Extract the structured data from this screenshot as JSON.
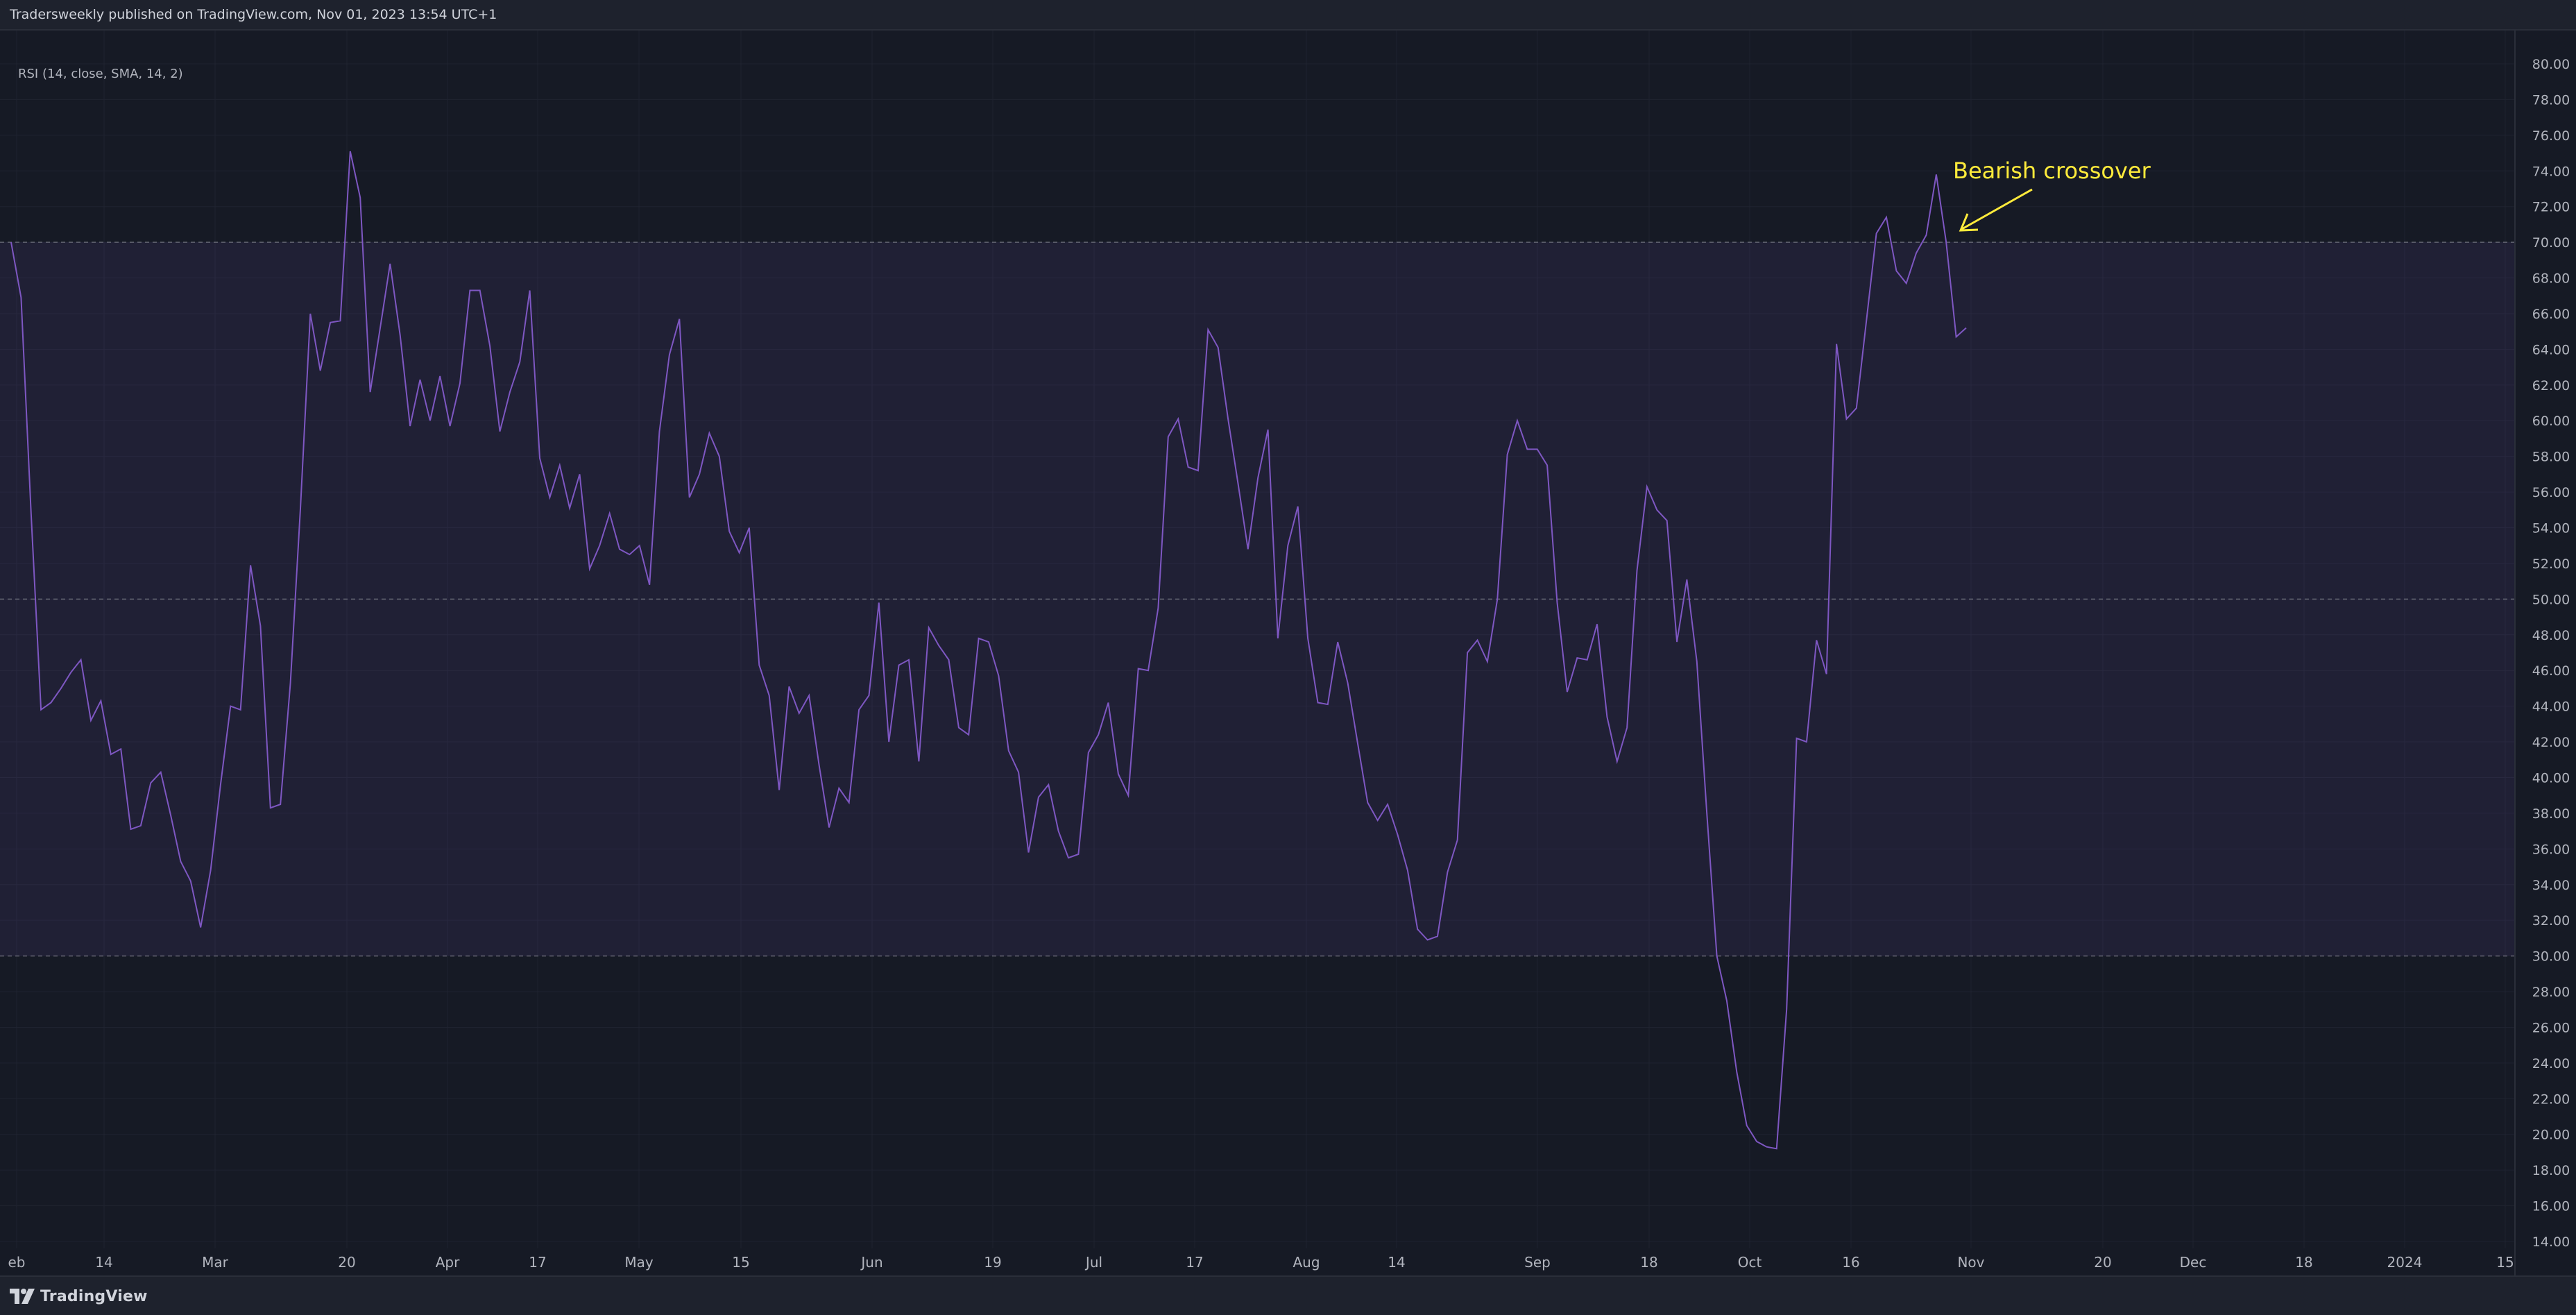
{
  "header": {
    "publisher_text": "Tradersweekly published on TradingView.com, Nov 01, 2023 13:54 UTC+1"
  },
  "indicator": {
    "label": "RSI (14, close, SMA, 14, 2)"
  },
  "footer": {
    "logo_text": "TradingView"
  },
  "colors": {
    "background": "#161a25",
    "band_fill": "#7e57c2",
    "rsi_line": "#7e57c2",
    "level_line": "#787b86",
    "annotation": "#ffeb3b"
  },
  "icons": {
    "logo": "tradingview-logo-icon",
    "annotation_arrow": "arrow-icon"
  },
  "chart_data": {
    "type": "line",
    "title": "",
    "xlabel": "",
    "ylabel": "",
    "ylim": [
      14,
      80
    ],
    "y_ticks": [
      "14.00",
      "16.00",
      "18.00",
      "20.00",
      "22.00",
      "24.00",
      "26.00",
      "28.00",
      "30.00",
      "32.00",
      "34.00",
      "36.00",
      "38.00",
      "40.00",
      "42.00",
      "44.00",
      "46.00",
      "48.00",
      "50.00",
      "52.00",
      "54.00",
      "56.00",
      "58.00",
      "60.00",
      "62.00",
      "64.00",
      "66.00",
      "68.00",
      "70.00",
      "72.00",
      "74.00",
      "76.00",
      "78.00",
      "80.00"
    ],
    "x_ticks": [
      "eb",
      "14",
      "Mar",
      "20",
      "Apr",
      "17",
      "May",
      "15",
      "Jun",
      "19",
      "Jul",
      "17",
      "Aug",
      "14",
      "Sep",
      "18",
      "Oct",
      "16",
      "Nov",
      "20",
      "Dec",
      "18",
      "2024",
      "15"
    ],
    "levels": [
      {
        "value": 70,
        "style": "dashed"
      },
      {
        "value": 50,
        "style": "dashed"
      },
      {
        "value": 30,
        "style": "dashed"
      }
    ],
    "band": [
      30,
      70
    ],
    "grid": true,
    "series": [
      {
        "values": [
          70.0,
          66.9,
          54.8,
          43.8,
          44.2,
          45.0,
          45.9,
          46.6,
          43.2,
          44.3,
          41.3,
          41.6,
          37.1,
          37.3,
          39.7,
          40.3,
          37.9,
          35.3,
          34.2,
          31.6,
          34.8,
          39.6,
          44.0,
          43.8,
          51.9,
          48.5,
          38.3,
          38.5,
          45.3,
          55.0,
          66.0,
          62.8,
          65.5,
          65.6,
          75.1,
          72.5,
          61.6,
          65.2,
          68.8,
          64.8,
          59.7,
          62.3,
          60.0,
          62.5,
          59.7,
          62.1,
          67.3,
          67.3,
          64.2,
          59.4,
          61.6,
          63.3,
          67.3,
          57.9,
          55.7,
          57.5,
          55.1,
          57.0,
          51.7,
          53.0,
          54.8,
          52.8,
          52.5,
          53.0,
          50.8,
          59.4,
          63.7,
          65.7,
          55.7,
          57.0,
          59.3,
          58.0,
          53.8,
          52.6,
          54.0,
          46.3,
          44.6,
          39.3,
          45.1,
          43.6,
          44.6,
          40.7,
          37.2,
          39.4,
          38.6,
          43.8,
          44.6,
          49.8,
          42.0,
          46.3,
          46.6,
          40.9,
          48.4,
          47.4,
          46.6,
          42.8,
          42.4,
          47.8,
          47.6,
          45.7,
          41.5,
          40.3,
          35.8,
          38.9,
          39.6,
          37.0,
          35.5,
          35.7,
          41.4,
          42.4,
          44.2,
          40.2,
          39.0,
          46.1,
          46.0,
          49.5,
          59.1,
          60.1,
          57.4,
          57.2,
          65.1,
          64.1,
          60.1,
          56.5,
          52.8,
          56.8,
          59.5,
          47.8,
          53.0,
          55.2,
          47.8,
          44.2,
          44.1,
          47.6,
          45.3,
          41.9,
          38.6,
          37.6,
          38.5,
          36.8,
          34.8,
          31.5,
          30.9,
          31.1,
          34.7,
          36.5,
          47.0,
          47.7,
          46.5,
          50.0,
          58.1,
          60.0,
          58.4,
          58.4,
          57.5,
          49.8,
          44.8,
          46.7,
          46.6,
          48.6,
          43.4,
          40.9,
          42.8,
          51.6,
          56.3,
          55.0,
          54.4,
          47.6,
          51.1,
          46.5,
          38.0,
          30.0,
          27.5,
          23.5,
          20.5,
          19.6,
          19.3,
          19.2,
          27.0,
          42.2,
          42.0,
          47.7,
          45.8,
          64.3,
          60.1,
          60.7,
          65.6,
          70.5,
          71.4,
          68.4,
          67.7,
          69.4,
          70.4,
          73.8,
          70.0,
          64.7,
          65.2
        ]
      }
    ],
    "annotations": [
      {
        "text": "Bearish crossover"
      }
    ]
  }
}
